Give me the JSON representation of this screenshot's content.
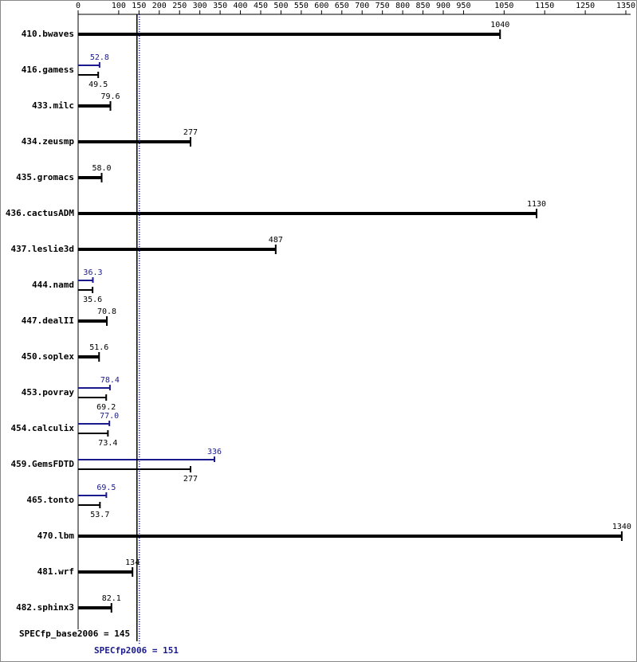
{
  "chart_data": {
    "type": "bar",
    "orientation": "horizontal",
    "categories": [
      "410.bwaves",
      "416.gamess",
      "433.milc",
      "434.zeusmp",
      "435.gromacs",
      "436.cactusADM",
      "437.leslie3d",
      "444.namd",
      "447.dealII",
      "450.soplex",
      "453.povray",
      "454.calculix",
      "459.GemsFDTD",
      "465.tonto",
      "470.lbm",
      "481.wrf",
      "482.sphinx3"
    ],
    "series": [
      {
        "name": "base",
        "color": "#000000",
        "values": [
          1040,
          49.5,
          79.6,
          277,
          58,
          1130,
          487,
          35.6,
          70.8,
          51.6,
          69.2,
          73.4,
          277,
          53.7,
          1340,
          134,
          82.1
        ],
        "value_labels": [
          null,
          null,
          null,
          null,
          "58.0",
          null,
          null,
          null,
          null,
          null,
          null,
          null,
          null,
          null,
          null,
          null,
          null
        ]
      },
      {
        "name": "peak",
        "color": "#1a1a8c",
        "values": [
          null,
          52.8,
          null,
          null,
          null,
          null,
          null,
          36.3,
          null,
          null,
          78.4,
          77.0,
          336,
          69.5,
          null,
          null,
          null
        ],
        "value_labels": [
          null,
          null,
          null,
          null,
          null,
          null,
          null,
          null,
          null,
          null,
          null,
          "77.0",
          null,
          null,
          null,
          null,
          null
        ]
      }
    ],
    "xlim": [
      0,
      1350
    ],
    "xticks": [
      0,
      100,
      150,
      200,
      250,
      300,
      350,
      400,
      450,
      500,
      550,
      600,
      650,
      700,
      750,
      800,
      850,
      900,
      950,
      1050,
      1150,
      1250,
      1350
    ],
    "base_summary": "SPECfp_base2006 = 145",
    "base_score": 145,
    "peak_summary": "SPECfp2006 = 151",
    "peak_score": 151
  }
}
